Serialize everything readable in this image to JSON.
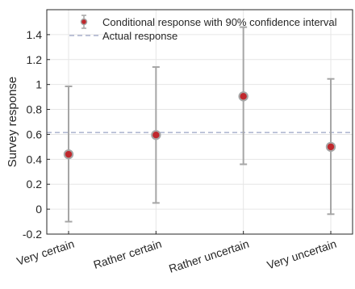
{
  "chart_data": {
    "type": "scatter",
    "categories": [
      "Very certain",
      "Rather certain",
      "Rather uncertain",
      "Very uncertain"
    ],
    "series": [
      {
        "name": "Conditional response with 90% confidence interval",
        "values": [
          0.44,
          0.595,
          0.905,
          0.5
        ],
        "lower": [
          -0.1,
          0.05,
          0.36,
          -0.04
        ],
        "upper": [
          0.985,
          1.14,
          1.46,
          1.045
        ]
      }
    ],
    "reference_lines": [
      {
        "name": "Actual response",
        "value": 0.615
      }
    ],
    "ylabel": "Survey response",
    "xlabel": "",
    "ylim": [
      -0.2,
      1.6
    ],
    "yticks": [
      -0.2,
      0,
      0.2,
      0.4,
      0.6,
      0.8,
      1,
      1.2,
      1.4
    ],
    "ytick_labels": [
      "-0.2",
      "0",
      "0.2",
      "0.4",
      "0.6",
      "0.8",
      "1",
      "1.2",
      "1.4"
    ],
    "grid": true,
    "legend_position": "top-right",
    "colors": {
      "marker_fill": "#c0282d",
      "marker_edge": "#a6a6a6",
      "errorbar": "#a6a6a6",
      "reference_line": "#9aa3c4",
      "grid": "#e6e6e6",
      "axis": "#262626"
    }
  }
}
